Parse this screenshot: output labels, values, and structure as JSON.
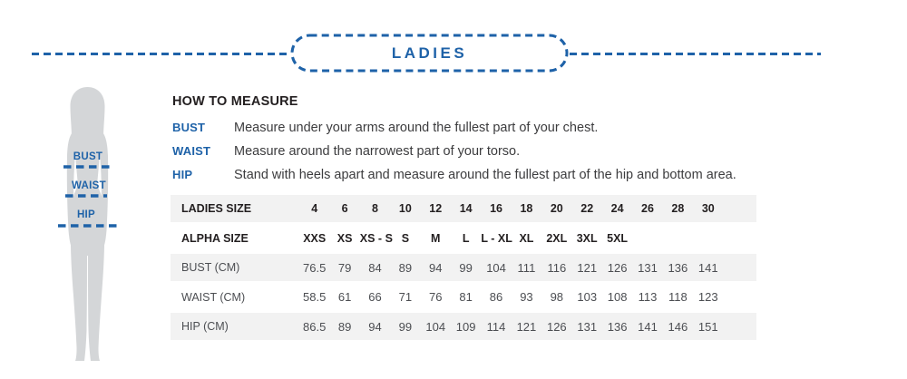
{
  "header": {
    "title": "LADIES"
  },
  "figure": {
    "labels": [
      "BUST",
      "WAIST",
      "HIP"
    ]
  },
  "how_to_measure": {
    "title": "HOW TO MEASURE",
    "items": [
      {
        "term": "BUST",
        "description": "Measure under your arms around the fullest part of your chest."
      },
      {
        "term": "WAIST",
        "description": "Measure around the narrowest part of your torso."
      },
      {
        "term": "HIP",
        "description": "Stand with heels apart and measure around the fullest part of the hip and bottom area."
      }
    ]
  },
  "size_table": {
    "rows": [
      {
        "label": "LADIES SIZE",
        "bold": true,
        "values": [
          "4",
          "6",
          "8",
          "10",
          "12",
          "14",
          "16",
          "18",
          "20",
          "22",
          "24",
          "26",
          "28",
          "30"
        ]
      },
      {
        "label": "ALPHA SIZE",
        "bold": true,
        "values": [
          "XXS",
          "XS",
          "XS - S",
          "S",
          "M",
          "L",
          "L - XL",
          "XL",
          "2XL",
          "3XL",
          "5XL",
          "",
          "",
          ""
        ]
      },
      {
        "label": "BUST (CM)",
        "values": [
          "76.5",
          "79",
          "84",
          "89",
          "94",
          "99",
          "104",
          "111",
          "116",
          "121",
          "126",
          "131",
          "136",
          "141"
        ]
      },
      {
        "label": "WAIST (CM)",
        "values": [
          "58.5",
          "61",
          "66",
          "71",
          "76",
          "81",
          "86",
          "93",
          "98",
          "103",
          "108",
          "113",
          "118",
          "123"
        ]
      },
      {
        "label": "HIP (CM)",
        "values": [
          "86.5",
          "89",
          "94",
          "99",
          "104",
          "109",
          "114",
          "121",
          "126",
          "131",
          "136",
          "141",
          "146",
          "151"
        ]
      }
    ]
  },
  "colors": {
    "accent": "#1e62a8",
    "silhouette": "#d4d6d8",
    "stripe": "#f2f2f2"
  }
}
